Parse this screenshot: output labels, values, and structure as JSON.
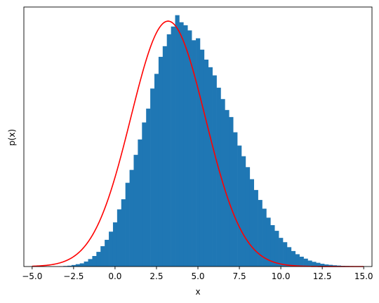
{
  "chart_data": {
    "type": "bar",
    "title": "",
    "xlabel": "x",
    "ylabel": "p(x)",
    "xlim": [
      -5.5,
      15.5
    ],
    "ylim": [
      0,
      0.1875
    ],
    "xticks": [
      -5.0,
      -2.5,
      0.0,
      2.5,
      5.0,
      7.5,
      10.0,
      12.5,
      15.0
    ],
    "xtick_labels": [
      "−5.0",
      "−2.5",
      "0.0",
      "2.5",
      "5.0",
      "7.5",
      "10.0",
      "12.5",
      "15.0"
    ],
    "yticks_shown": false,
    "grid": false,
    "legend": "none",
    "histogram": {
      "bin_width": 0.25,
      "bin_centers": [
        -3.25,
        -3.0,
        -2.75,
        -2.5,
        -2.25,
        -2.0,
        -1.75,
        -1.5,
        -1.25,
        -1.0,
        -0.75,
        -0.5,
        -0.25,
        0.0,
        0.25,
        0.5,
        0.75,
        1.0,
        1.25,
        1.5,
        1.75,
        2.0,
        2.25,
        2.5,
        2.75,
        3.0,
        3.25,
        3.5,
        3.75,
        4.0,
        4.25,
        4.5,
        4.75,
        5.0,
        5.25,
        5.5,
        5.75,
        6.0,
        6.25,
        6.5,
        6.75,
        7.0,
        7.25,
        7.5,
        7.75,
        8.0,
        8.25,
        8.5,
        8.75,
        9.0,
        9.25,
        9.5,
        9.75,
        10.0,
        10.25,
        10.5,
        10.75,
        11.0,
        11.25,
        11.5,
        11.75,
        12.0,
        12.25,
        12.5,
        12.75,
        13.0,
        13.25,
        13.5,
        13.75,
        14.0,
        14.25,
        14.5
      ],
      "values": [
        0.0002,
        0.0004,
        0.0006,
        0.0011,
        0.0017,
        0.0023,
        0.0036,
        0.0054,
        0.0076,
        0.0106,
        0.0147,
        0.0193,
        0.0252,
        0.0319,
        0.0413,
        0.0486,
        0.0605,
        0.0698,
        0.0807,
        0.0918,
        0.1041,
        0.1141,
        0.1286,
        0.1392,
        0.1515,
        0.1592,
        0.1678,
        0.1734,
        0.1816,
        0.1765,
        0.1743,
        0.1706,
        0.1635,
        0.1649,
        0.1567,
        0.1495,
        0.144,
        0.1381,
        0.1292,
        0.121,
        0.1131,
        0.108,
        0.097,
        0.0874,
        0.0797,
        0.0718,
        0.0631,
        0.0553,
        0.0481,
        0.0418,
        0.0353,
        0.0299,
        0.0258,
        0.0207,
        0.0176,
        0.014,
        0.0112,
        0.0089,
        0.0071,
        0.0057,
        0.0043,
        0.0034,
        0.0027,
        0.002,
        0.0015,
        0.0012,
        0.0009,
        0.0007,
        0.0005,
        0.0004,
        0.0003,
        0.0002
      ],
      "color": "#1f77b4"
    },
    "curve": {
      "mean": 3.2,
      "std": 2.25,
      "x_range": [
        -5.0,
        15.0
      ],
      "color": "#ff0000"
    }
  }
}
